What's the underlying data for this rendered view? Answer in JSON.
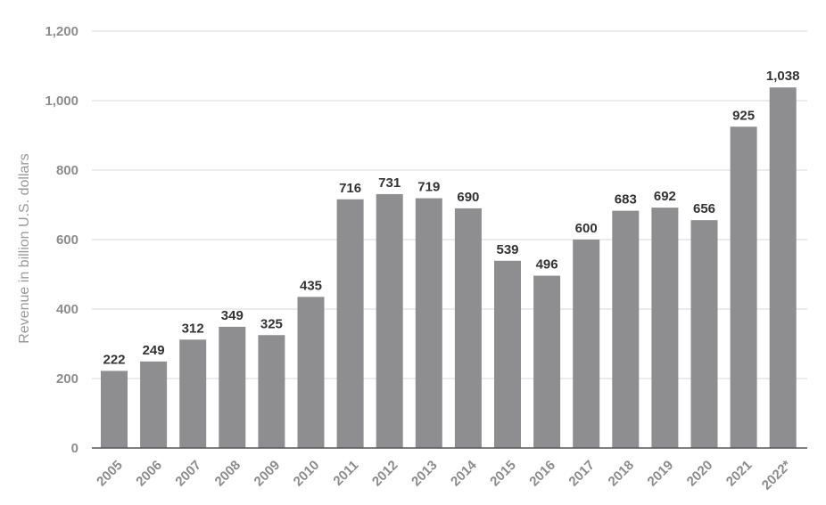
{
  "chart_data": {
    "type": "bar",
    "title": "",
    "xlabel": "",
    "ylabel": "Revenue in billion U.S. dollars",
    "categories": [
      "2005",
      "2006",
      "2007",
      "2008",
      "2009",
      "2010",
      "2011",
      "2012",
      "2013",
      "2014",
      "2015",
      "2016",
      "2017",
      "2018",
      "2019",
      "2020",
      "2021",
      "2022*"
    ],
    "values": [
      222,
      249,
      312,
      349,
      325,
      435,
      716,
      731,
      719,
      690,
      539,
      496,
      600,
      683,
      692,
      656,
      925,
      1038
    ],
    "value_labels": [
      "222",
      "249",
      "312",
      "349",
      "325",
      "435",
      "716",
      "731",
      "719",
      "690",
      "539",
      "496",
      "600",
      "683",
      "692",
      "656",
      "925",
      "1,038"
    ],
    "ylim": [
      0,
      1200
    ],
    "yticks": [
      0,
      200,
      400,
      600,
      800,
      1000,
      1200
    ],
    "ytick_labels": [
      "0",
      "200",
      "400",
      "600",
      "800",
      "1,000",
      "1,200"
    ],
    "grid": true,
    "legend": "none",
    "bar_color": "#8e8e90",
    "grid_color": "#e6e6e6",
    "axis_color": "#555555"
  }
}
